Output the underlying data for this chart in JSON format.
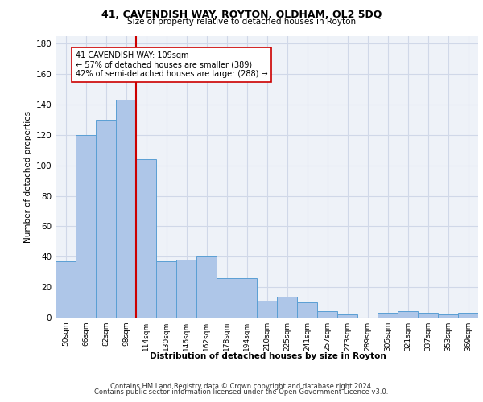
{
  "title1": "41, CAVENDISH WAY, ROYTON, OLDHAM, OL2 5DQ",
  "title2": "Size of property relative to detached houses in Royton",
  "xlabel": "Distribution of detached houses by size in Royton",
  "ylabel": "Number of detached properties",
  "footer1": "Contains HM Land Registry data © Crown copyright and database right 2024.",
  "footer2": "Contains public sector information licensed under the Open Government Licence v3.0.",
  "bar_values": [
    37,
    120,
    130,
    143,
    104,
    37,
    38,
    40,
    26,
    26,
    11,
    14,
    10,
    4,
    2,
    0,
    3,
    4,
    3,
    2,
    3
  ],
  "bin_labels": [
    "50sqm",
    "66sqm",
    "82sqm",
    "98sqm",
    "114sqm",
    "130sqm",
    "146sqm",
    "162sqm",
    "178sqm",
    "194sqm",
    "210sqm",
    "225sqm",
    "241sqm",
    "257sqm",
    "273sqm",
    "289sqm",
    "305sqm",
    "321sqm",
    "337sqm",
    "353sqm",
    "369sqm"
  ],
  "bar_color": "#aec6e8",
  "bar_edge_color": "#5a9fd4",
  "red_line_x": 3.5,
  "annotation_text": "41 CAVENDISH WAY: 109sqm\n← 57% of detached houses are smaller (389)\n42% of semi-detached houses are larger (288) →",
  "annotation_box_color": "#ffffff",
  "annotation_box_edge": "#cc0000",
  "red_line_color": "#cc0000",
  "grid_color": "#d0d8e8",
  "background_color": "#eef2f8",
  "ylim": [
    0,
    185
  ],
  "yticks": [
    0,
    20,
    40,
    60,
    80,
    100,
    120,
    140,
    160,
    180
  ]
}
